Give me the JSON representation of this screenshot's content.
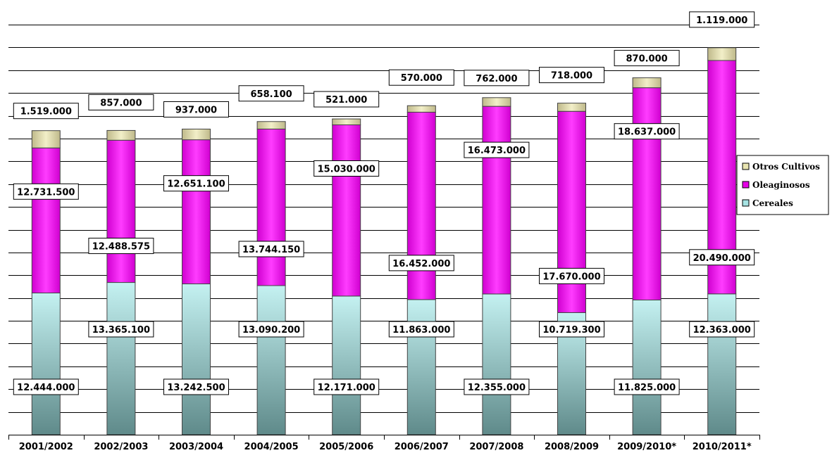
{
  "chart_data": {
    "type": "bar",
    "stacked": true,
    "categories": [
      "2001/2002",
      "2002/2003",
      "2003/2004",
      "2004/2005",
      "2005/2006",
      "2006/2007",
      "2007/2008",
      "2008/2009",
      "2009/2010*",
      "2010/2011*"
    ],
    "series": [
      {
        "name": "Cereales",
        "color": "#a6e3e3",
        "values": [
          12444000,
          13365100,
          13242500,
          13090200,
          12171000,
          11863000,
          12355000,
          10719300,
          11825000,
          12363000
        ],
        "labels": [
          "12.444.000",
          "13.365.100",
          "13.242.500",
          "13.090.200",
          "12.171.000",
          "11.863.000",
          "12.355.000",
          "10.719.300",
          "11.825.000",
          "12.363.000"
        ]
      },
      {
        "name": "Oleaginosos",
        "color": "#e600e6",
        "values": [
          12731500,
          12488575,
          12651100,
          13744150,
          15030000,
          16452000,
          16473000,
          17670000,
          18637000,
          20490000
        ],
        "labels": [
          "12.731.500",
          "12.488.575",
          "12.651.100",
          "13.744.150",
          "15.030.000",
          "16.452.000",
          "16.473.000",
          "17.670.000",
          "18.637.000",
          "20.490.000"
        ]
      },
      {
        "name": "Otros Cultivos",
        "color": "#e8e4b0",
        "values": [
          1519000,
          857000,
          937000,
          658100,
          521000,
          570000,
          762000,
          718000,
          870000,
          1119000
        ],
        "labels": [
          "1.519.000",
          "857.000",
          "937.000",
          "658.100",
          "521.000",
          "570.000",
          "762.000",
          "718.000",
          "870.000",
          "1.119.000"
        ]
      }
    ],
    "legend_order": [
      "Otros Cultivos",
      "Oleaginosos",
      "Cereales"
    ],
    "legend_position": "right",
    "ylim": [
      0,
      36000000
    ],
    "grid": true,
    "title": "",
    "xlabel": "",
    "ylabel": ""
  }
}
